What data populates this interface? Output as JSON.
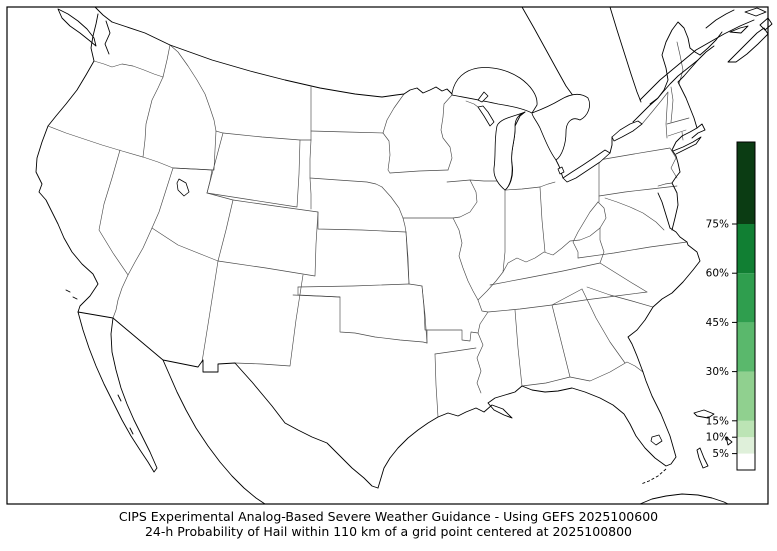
{
  "caption": {
    "line1": "CIPS Experimental Analog-Based Severe Weather Guidance - Using GEFS 2025100600",
    "line2": "24-h Probability of Hail within 110 km of a grid point centered at 2025100800"
  },
  "chart_data": {
    "type": "map",
    "subtype": "probability-contour-map",
    "region": "CONUS",
    "title": "CIPS Experimental Analog-Based Severe Weather Guidance - Using GEFS 2025100600",
    "subtitle": "24-h Probability of Hail within 110 km of a grid point centered at 2025100800",
    "model": "GEFS",
    "init_time": "2025100600",
    "valid_time": "2025100800",
    "field": "24-h Probability of Hail within 110 km of a grid point",
    "data_note": "No probability contours are drawn on the map (all values below lowest 5% threshold)",
    "legend_position": "right-inside",
    "colorbar": {
      "unit": "%",
      "range": [
        0,
        100
      ],
      "thresholds": [
        0,
        5,
        10,
        15,
        30,
        45,
        60,
        75,
        100
      ],
      "colors": [
        "#ffffff",
        "#dff0da",
        "#bce4b5",
        "#90d08f",
        "#5ab86c",
        "#2f9e4e",
        "#117f33",
        "#0b3c13"
      ],
      "tick_labels": [
        {
          "value": 75,
          "label": "75%"
        },
        {
          "value": 60,
          "label": "60%"
        },
        {
          "value": 45,
          "label": "45%"
        },
        {
          "value": 30,
          "label": "30%"
        },
        {
          "value": 15,
          "label": "15%"
        },
        {
          "value": 10,
          "label": "10%"
        },
        {
          "value": 5,
          "label": "5%"
        }
      ]
    },
    "map_style": {
      "land_fill": "#ffffff",
      "coast_color": "#000000",
      "state_border_color": "#4a4a4a"
    }
  }
}
